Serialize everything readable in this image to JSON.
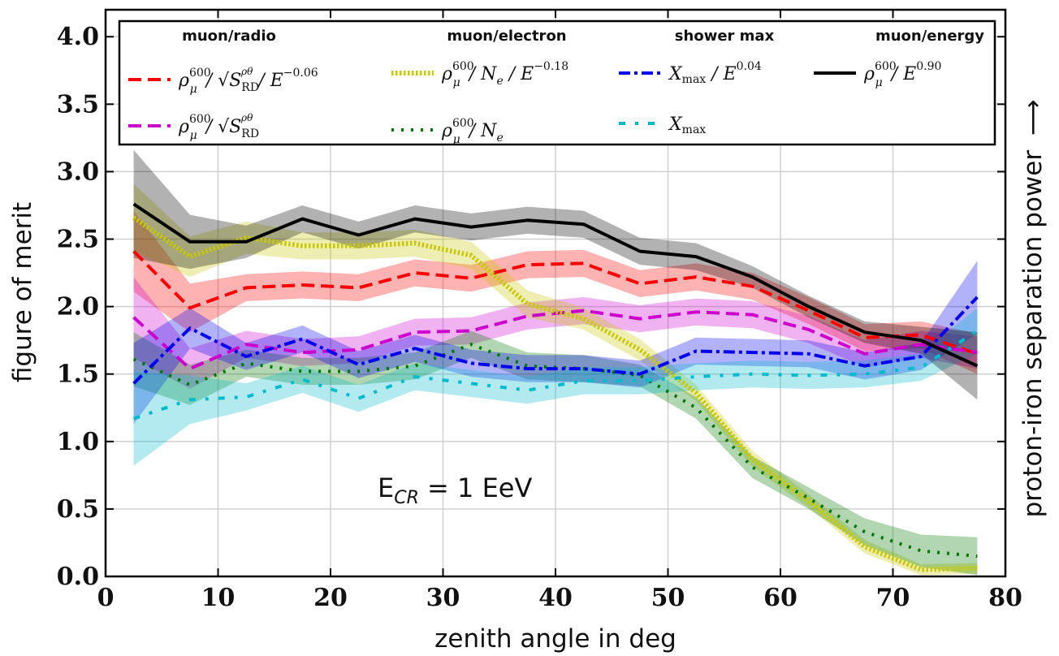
{
  "chart_data": {
    "type": "line",
    "xlabel": "zenith angle in deg",
    "ylabel": "figure of merit",
    "right_label": "proton-iron separation power",
    "right_arrow": "⟶",
    "annotation": "E",
    "annotation_sub": "CR",
    "annotation_value": " =  1 EeV",
    "xlim": [
      0,
      80
    ],
    "ylim": [
      0,
      4.2
    ],
    "xticks": [
      0,
      10,
      20,
      30,
      40,
      50,
      60,
      70,
      80
    ],
    "yticks": [
      0.0,
      0.5,
      1.0,
      1.5,
      2.0,
      2.5,
      3.0,
      3.5,
      4.0
    ],
    "x": [
      2.5,
      7.5,
      12.5,
      17.5,
      22.5,
      27.5,
      32.5,
      37.5,
      42.5,
      47.5,
      52.5,
      57.5,
      62.5,
      67.5,
      72.5,
      77.5
    ],
    "grid": true,
    "legend_position": "top",
    "legend_groups": [
      "muon/radio",
      "muon/electron",
      "shower max",
      "muon/energy"
    ],
    "series": [
      {
        "name": "ρμ600 / √SRD / E^-0.06",
        "group": "muon/radio",
        "color": "#ff0000",
        "style": "dashed",
        "values": [
          2.41,
          1.99,
          2.14,
          2.16,
          2.14,
          2.25,
          2.21,
          2.31,
          2.32,
          2.17,
          2.22,
          2.15,
          1.97,
          1.77,
          1.79,
          1.65
        ],
        "err": [
          0.3,
          0.18,
          0.1,
          0.1,
          0.1,
          0.1,
          0.1,
          0.1,
          0.1,
          0.1,
          0.1,
          0.1,
          0.1,
          0.1,
          0.1,
          0.15
        ]
      },
      {
        "name": "ρμ600 / √SRD",
        "group": "muon/radio",
        "color": "#cc00cc",
        "style": "dashed",
        "values": [
          1.92,
          1.54,
          1.72,
          1.66,
          1.68,
          1.81,
          1.82,
          1.93,
          1.97,
          1.91,
          1.96,
          1.94,
          1.83,
          1.65,
          1.72,
          1.66
        ],
        "err": [
          0.3,
          0.15,
          0.1,
          0.1,
          0.1,
          0.1,
          0.1,
          0.1,
          0.1,
          0.1,
          0.1,
          0.1,
          0.1,
          0.1,
          0.1,
          0.12
        ]
      },
      {
        "name": "ρμ600 / Ne / E^-0.18",
        "group": "muon/electron",
        "color": "#c8c800",
        "style": "dotted-thick",
        "values": [
          2.66,
          2.37,
          2.51,
          2.45,
          2.45,
          2.47,
          2.38,
          2.02,
          1.91,
          1.68,
          1.36,
          0.87,
          0.56,
          0.22,
          0.05,
          0.06
        ],
        "err": [
          0.25,
          0.15,
          0.12,
          0.1,
          0.1,
          0.1,
          0.1,
          0.1,
          0.08,
          0.08,
          0.06,
          0.06,
          0.05,
          0.05,
          0.04,
          0.04
        ]
      },
      {
        "name": "ρμ600 / Ne",
        "group": "muon/electron",
        "color": "#007700",
        "style": "dotted",
        "values": [
          1.61,
          1.42,
          1.58,
          1.52,
          1.52,
          1.56,
          1.72,
          1.56,
          1.54,
          1.49,
          1.25,
          0.81,
          0.58,
          0.33,
          0.19,
          0.15
        ],
        "err": [
          0.2,
          0.15,
          0.1,
          0.1,
          0.1,
          0.1,
          0.1,
          0.1,
          0.1,
          0.08,
          0.08,
          0.08,
          0.08,
          0.1,
          0.12,
          0.14
        ]
      },
      {
        "name": "Xmax / E^0.04",
        "group": "shower max",
        "color": "#0000ee",
        "style": "dashdot",
        "values": [
          1.43,
          1.84,
          1.63,
          1.76,
          1.57,
          1.69,
          1.58,
          1.54,
          1.54,
          1.5,
          1.67,
          1.66,
          1.65,
          1.56,
          1.63,
          2.07
        ],
        "err": [
          0.3,
          0.15,
          0.1,
          0.1,
          0.1,
          0.1,
          0.1,
          0.1,
          0.1,
          0.1,
          0.1,
          0.1,
          0.1,
          0.1,
          0.1,
          0.27
        ]
      },
      {
        "name": "Xmax",
        "group": "shower max",
        "color": "#00bbcc",
        "style": "dashdot-sparse",
        "values": [
          1.17,
          1.31,
          1.33,
          1.46,
          1.32,
          1.48,
          1.43,
          1.38,
          1.45,
          1.45,
          1.48,
          1.5,
          1.49,
          1.5,
          1.55,
          1.82
        ],
        "err": [
          0.35,
          0.18,
          0.1,
          0.1,
          0.1,
          0.1,
          0.1,
          0.1,
          0.1,
          0.1,
          0.1,
          0.1,
          0.1,
          0.1,
          0.1,
          0.17
        ]
      },
      {
        "name": "ρμ600 / E^0.90",
        "group": "muon/energy",
        "color": "#000000",
        "style": "solid",
        "values": [
          2.76,
          2.48,
          2.48,
          2.65,
          2.53,
          2.65,
          2.59,
          2.64,
          2.61,
          2.41,
          2.37,
          2.22,
          2.0,
          1.81,
          1.75,
          1.56
        ],
        "err": [
          0.4,
          0.2,
          0.12,
          0.1,
          0.1,
          0.1,
          0.1,
          0.1,
          0.1,
          0.1,
          0.1,
          0.08,
          0.08,
          0.08,
          0.1,
          0.25
        ]
      }
    ],
    "legend_entries": [
      {
        "series": 0,
        "label_parts": [
          "ρ",
          "μ",
          "600",
          " / √S",
          "RD",
          " / E",
          "−0.06"
        ]
      },
      {
        "series": 1,
        "label_parts": [
          "ρ",
          "μ",
          "600",
          " / √S",
          "RD",
          "",
          ""
        ]
      },
      {
        "series": 2,
        "label_parts": [
          "ρ",
          "μ",
          "600",
          " / N",
          "e",
          " / E",
          "−0.18"
        ]
      },
      {
        "series": 3,
        "label_parts": [
          "ρ",
          "μ",
          "600",
          " / N",
          "e",
          "",
          ""
        ]
      },
      {
        "series": 4,
        "label_parts": [
          "X",
          "max",
          "",
          " / E",
          "",
          "",
          "0.04"
        ]
      },
      {
        "series": 5,
        "label_parts": [
          "X",
          "max",
          "",
          "",
          "",
          "",
          ""
        ]
      },
      {
        "series": 6,
        "label_parts": [
          "ρ",
          "μ",
          "600",
          " / E",
          "",
          "",
          "0.90"
        ]
      }
    ],
    "s_superscript": "ρθ"
  }
}
